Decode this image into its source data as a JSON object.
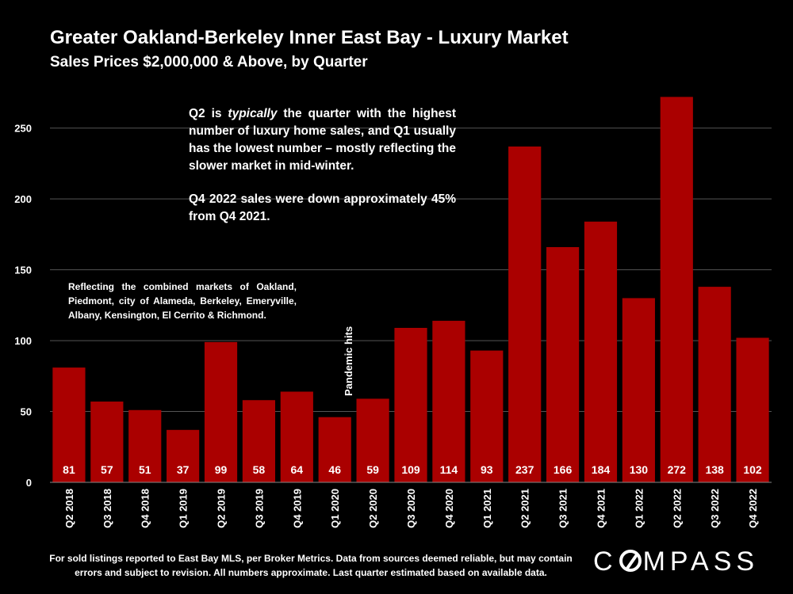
{
  "title": "Greater Oakland-Berkeley Inner East Bay - Luxury Market",
  "subtitle": "Sales Prices $2,000,000 & Above, by Quarter",
  "note_main": {
    "para1_before": "Q2 is ",
    "para1_em": "typically",
    "para1_after": " the quarter with the highest number of luxury home sales, and Q1 usually has the lowest number – mostly reflecting the slower market in mid-winter.",
    "para2": "Q4 2022 sales were down approximately 45% from Q4 2021."
  },
  "note_markets": "Reflecting the combined markets of Oakland, Piedmont, city of Alameda, Berkeley, Emeryville, Albany, Kensington, El Cerrito & Richmond.",
  "footer": "For sold listings reported to East Bay MLS, per Broker Metrics. Data from sources deemed reliable, but may contain errors and subject to revision. All numbers approximate. Last quarter estimated based on available data.",
  "logo": {
    "before": "C",
    "after": "MPASS",
    "label": "COMPASS"
  },
  "colors": {
    "bar": "#aa0000",
    "background": "#000000",
    "grid": "#555555",
    "text": "#ffffff"
  },
  "chart_data": {
    "type": "bar",
    "title": "Greater Oakland-Berkeley Inner East Bay - Luxury Market",
    "subtitle": "Sales Prices $2,000,000 & Above, by Quarter",
    "categories": [
      "Q2 2018",
      "Q3 2018",
      "Q4 2018",
      "Q1 2019",
      "Q2 2019",
      "Q3 2019",
      "Q4 2019",
      "Q1 2020",
      "Q2 2020",
      "Q3 2020",
      "Q4 2020",
      "Q1 2021",
      "Q2 2021",
      "Q3 2021",
      "Q4 2021",
      "Q1 2022",
      "Q2 2022",
      "Q3 2022",
      "Q4 2022"
    ],
    "values": [
      81,
      57,
      51,
      37,
      99,
      58,
      64,
      46,
      59,
      109,
      114,
      93,
      237,
      166,
      184,
      130,
      272,
      138,
      102
    ],
    "ylim": [
      0,
      275
    ],
    "yticks": [
      0,
      50,
      100,
      150,
      200,
      250
    ],
    "grid": true,
    "xlabel": "",
    "ylabel": "",
    "annotation": {
      "text": "Pandemic hits",
      "category": "Q1 2020"
    }
  }
}
